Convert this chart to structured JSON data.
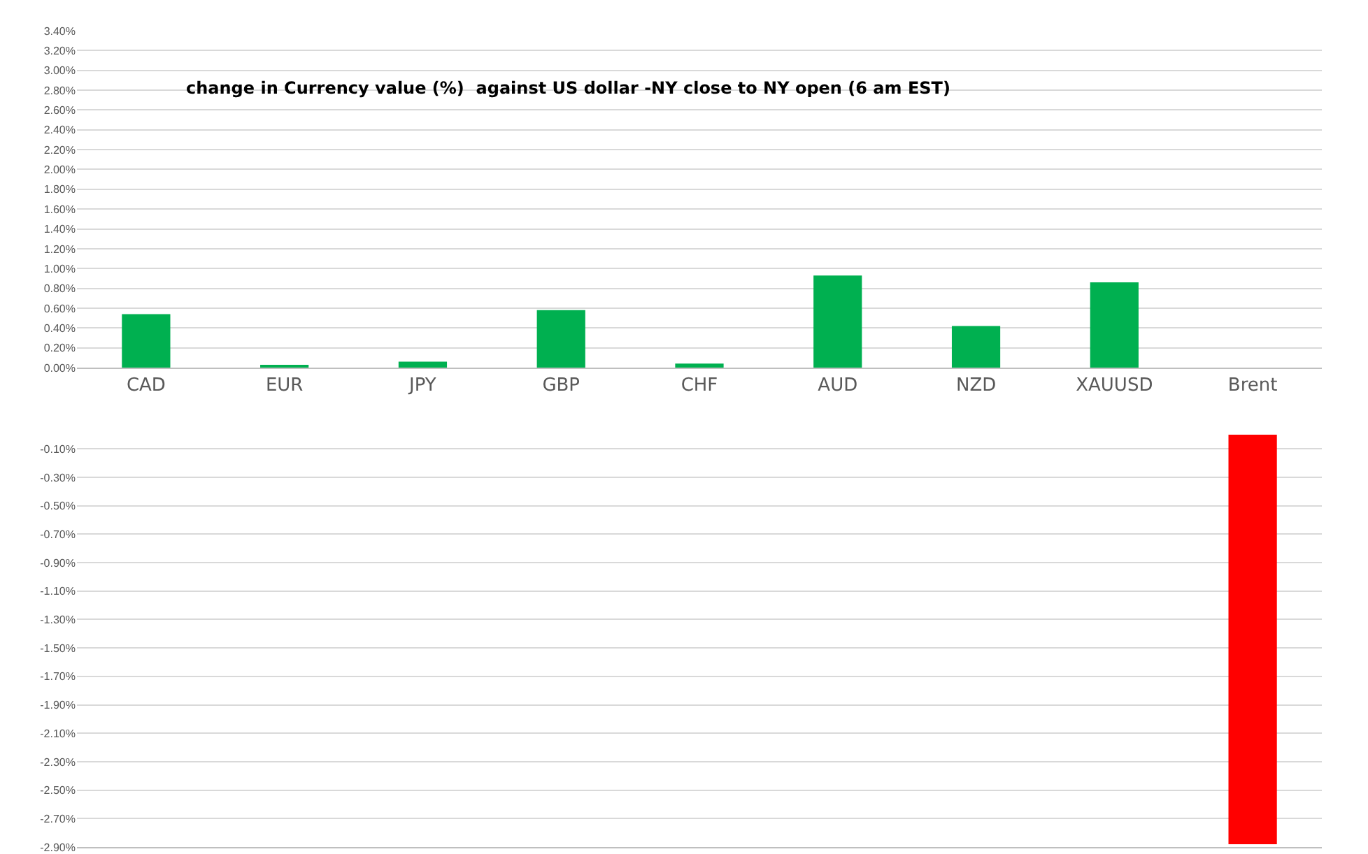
{
  "chart_data": [
    {
      "type": "bar",
      "title": "change in Currency value (%)  against US dollar -NY close to NY open (6 am EST)",
      "categories": [
        "CAD",
        "EUR",
        "JPY",
        "GBP",
        "CHF",
        "AUD",
        "NZD",
        "XAUUSD",
        "Brent"
      ],
      "values": [
        0.54,
        0.02,
        0.06,
        0.58,
        0.04,
        0.93,
        0.42,
        0.86,
        null
      ],
      "color": "#00b050",
      "ylim": [
        0,
        3.4
      ],
      "yticks": [
        {
          "value": 0,
          "label": "0.00%"
        },
        {
          "value": 0.2,
          "label": "0.20%"
        },
        {
          "value": 0.4,
          "label": "0.40%"
        },
        {
          "value": 0.6,
          "label": "0.60%"
        },
        {
          "value": 0.8,
          "label": "0.80%"
        },
        {
          "value": 1.0,
          "label": "1.00%"
        },
        {
          "value": 1.2,
          "label": "1.20%"
        },
        {
          "value": 1.4,
          "label": "1.40%"
        },
        {
          "value": 1.6,
          "label": "1.60%"
        },
        {
          "value": 1.8,
          "label": "1.80%"
        },
        {
          "value": 2.0,
          "label": "2.00%"
        },
        {
          "value": 2.2,
          "label": "2.20%"
        },
        {
          "value": 2.4,
          "label": "2.40%"
        },
        {
          "value": 2.6,
          "label": "2.60%"
        },
        {
          "value": 2.8,
          "label": "2.80%"
        },
        {
          "value": 3.0,
          "label": "3.00%"
        },
        {
          "value": 3.2,
          "label": "3.20%"
        },
        {
          "value": 3.4,
          "label": "3.40%"
        }
      ],
      "grid": "y"
    },
    {
      "type": "bar",
      "categories": [
        null,
        null,
        null,
        null,
        null,
        null,
        null,
        null,
        null
      ],
      "values": [
        null,
        null,
        null,
        null,
        null,
        null,
        null,
        null,
        -2.88
      ],
      "color": "#ff0000",
      "ylim": [
        -2.9,
        0
      ],
      "yticks": [
        {
          "value": -0.1,
          "label": "-0.10%"
        },
        {
          "value": -0.3,
          "label": "-0.30%"
        },
        {
          "value": -0.5,
          "label": "-0.50%"
        },
        {
          "value": -0.7,
          "label": "-0.70%"
        },
        {
          "value": -0.9,
          "label": "-0.90%"
        },
        {
          "value": -1.1,
          "label": "-1.10%"
        },
        {
          "value": -1.3,
          "label": "-1.30%"
        },
        {
          "value": -1.5,
          "label": "-1.50%"
        },
        {
          "value": -1.7,
          "label": "-1.70%"
        },
        {
          "value": -1.9,
          "label": "-1.90%"
        },
        {
          "value": -2.1,
          "label": "-2.10%"
        },
        {
          "value": -2.3,
          "label": "-2.30%"
        },
        {
          "value": -2.5,
          "label": "-2.50%"
        },
        {
          "value": -2.7,
          "label": "-2.70%"
        },
        {
          "value": -2.9,
          "label": "-2.90%"
        }
      ],
      "grid": "y",
      "tick_labels": "y"
    }
  ]
}
